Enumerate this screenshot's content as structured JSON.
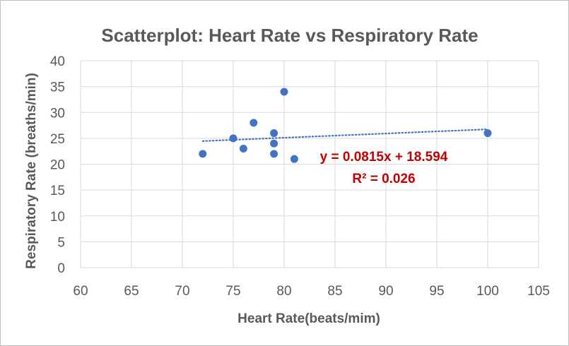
{
  "chart_data": {
    "type": "scatter",
    "title": "Scatterplot: Heart Rate vs Respiratory Rate",
    "xlabel": "Heart Rate(beats/mim)",
    "ylabel": "Respiratory Rate (breaths/min)",
    "xlim": [
      60,
      105
    ],
    "ylim": [
      0,
      40
    ],
    "x_ticks": [
      "60",
      "65",
      "70",
      "75",
      "80",
      "85",
      "90",
      "95",
      "100",
      "105"
    ],
    "y_ticks": [
      "0",
      "5",
      "10",
      "15",
      "20",
      "25",
      "30",
      "35",
      "40"
    ],
    "grid": true,
    "series": [
      {
        "color": "#4472c4",
        "points": [
          {
            "x": 72,
            "y": 22
          },
          {
            "x": 75,
            "y": 25
          },
          {
            "x": 76,
            "y": 23
          },
          {
            "x": 77,
            "y": 28
          },
          {
            "x": 79,
            "y": 26
          },
          {
            "x": 79,
            "y": 24
          },
          {
            "x": 79,
            "y": 22
          },
          {
            "x": 80,
            "y": 34
          },
          {
            "x": 81,
            "y": 21
          },
          {
            "x": 100,
            "y": 26
          }
        ]
      }
    ],
    "trendline": {
      "type": "linear",
      "slope": 0.0815,
      "intercept": 18.594,
      "x_range": [
        72,
        100
      ],
      "color": "#4472c4",
      "style": "dotted",
      "equation_label": "y = 0.0815x + 18.594",
      "r2_label": "R² = 0.026",
      "label_color": "#c00000"
    }
  }
}
